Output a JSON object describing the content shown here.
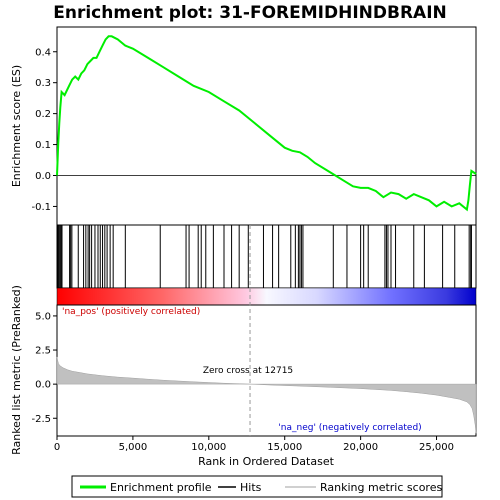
{
  "chart_data": {
    "type": "line",
    "title": "Enrichment plot: 31-FOREMIDHINDBRAIN",
    "x_label": "Rank in Ordered Dataset",
    "es_label": "Enrichment score (ES)",
    "metric_label": "Ranked list metric (PreRanked)",
    "xlim": [
      0,
      27600
    ],
    "x_ticks": [
      0,
      5000,
      10000,
      15000,
      20000,
      25000
    ],
    "x_tick_labels": [
      "0",
      "5,000",
      "10,000",
      "15,000",
      "20,000",
      "25,000"
    ],
    "es_ylim": [
      -0.16,
      0.48
    ],
    "es_ticks": [
      -0.1,
      0.0,
      0.1,
      0.2,
      0.3,
      0.4
    ],
    "es_tick_labels": [
      "-0.1",
      "0.0",
      "0.1",
      "0.2",
      "0.3",
      "0.4"
    ],
    "metric_ylim": [
      -3.8,
      5.8
    ],
    "metric_ticks": [
      -2.5,
      0.0,
      2.5,
      5.0
    ],
    "metric_tick_labels": [
      "-2.5",
      "0.0",
      "2.5",
      "5.0"
    ],
    "zero_cross_rank": 12715,
    "zero_cross_label": "Zero cross at 12715",
    "pos_label": "'na_pos' (positively correlated)",
    "neg_label": "'na_neg' (negatively correlated)",
    "series": [
      {
        "name": "Enrichment profile",
        "color": "#00ee00",
        "x": [
          0,
          80,
          150,
          220,
          300,
          500,
          800,
          1000,
          1200,
          1400,
          1600,
          1800,
          2000,
          2200,
          2400,
          2600,
          2800,
          3000,
          3200,
          3400,
          3600,
          4000,
          4500,
          5000,
          6000,
          7000,
          8000,
          9000,
          10000,
          11000,
          12000,
          13000,
          14000,
          15000,
          15500,
          16000,
          16500,
          17000,
          18000,
          19000,
          19500,
          20000,
          20500,
          21000,
          21500,
          22000,
          22500,
          23000,
          23500,
          24000,
          24500,
          25000,
          25500,
          26000,
          26500,
          27000,
          27100,
          27200,
          27300,
          27600
        ],
        "y": [
          0.0,
          0.1,
          0.17,
          0.22,
          0.27,
          0.26,
          0.29,
          0.31,
          0.32,
          0.31,
          0.33,
          0.34,
          0.36,
          0.37,
          0.38,
          0.38,
          0.4,
          0.42,
          0.44,
          0.45,
          0.45,
          0.44,
          0.42,
          0.41,
          0.38,
          0.35,
          0.32,
          0.29,
          0.27,
          0.24,
          0.21,
          0.17,
          0.13,
          0.09,
          0.08,
          0.075,
          0.06,
          0.04,
          0.01,
          -0.02,
          -0.035,
          -0.04,
          -0.04,
          -0.05,
          -0.07,
          -0.055,
          -0.06,
          -0.075,
          -0.06,
          -0.07,
          -0.08,
          -0.1,
          -0.085,
          -0.1,
          -0.09,
          -0.11,
          -0.08,
          -0.03,
          0.015,
          0.005
        ]
      },
      {
        "name": "Hits",
        "color": "#000000",
        "ranks": [
          60,
          120,
          190,
          260,
          330,
          830,
          900,
          980,
          1400,
          1750,
          1900,
          2050,
          2150,
          2280,
          2500,
          2700,
          2850,
          3000,
          3150,
          3300,
          3500,
          3700,
          4500,
          6800,
          8500,
          8700,
          9300,
          9500,
          9800,
          10300,
          11000,
          11500,
          12000,
          12600,
          13600,
          14200,
          14600,
          15400,
          15700,
          15900,
          16000,
          16100,
          16200,
          18200,
          19100,
          20000,
          20200,
          20500,
          21600,
          21700,
          21800,
          22000,
          22300,
          23500,
          24200,
          25400,
          26200,
          27150,
          27250,
          27300
        ]
      },
      {
        "name": "Ranking metric scores",
        "color": "#c0c0c0",
        "x": [
          0,
          50,
          100,
          200,
          400,
          700,
          1000,
          1500,
          2000,
          3000,
          4000,
          5000,
          6000,
          7000,
          8000,
          9000,
          10000,
          11000,
          12000,
          12715,
          14000,
          16000,
          18000,
          20000,
          22000,
          23000,
          24000,
          25000,
          26000,
          26500,
          27000,
          27200,
          27350,
          27450,
          27550,
          27600
        ],
        "y": [
          2.0,
          1.7,
          1.5,
          1.35,
          1.2,
          1.05,
          0.95,
          0.85,
          0.75,
          0.62,
          0.52,
          0.44,
          0.36,
          0.29,
          0.23,
          0.17,
          0.12,
          0.07,
          0.03,
          0.0,
          -0.06,
          -0.14,
          -0.23,
          -0.33,
          -0.46,
          -0.55,
          -0.66,
          -0.8,
          -1.0,
          -1.1,
          -1.3,
          -1.5,
          -1.8,
          -2.3,
          -3.0,
          -3.6
        ]
      }
    ],
    "legend": {
      "placement": "bottom",
      "items": [
        {
          "label": "Enrichment profile",
          "color": "#00ee00"
        },
        {
          "label": "Hits",
          "color": "#000000"
        },
        {
          "label": "Ranking metric scores",
          "color": "#c0c0c0"
        }
      ]
    },
    "colors": {
      "pos_text": "#cc0000",
      "neg_text": "#0000cc",
      "zero_line": "#999999"
    }
  }
}
